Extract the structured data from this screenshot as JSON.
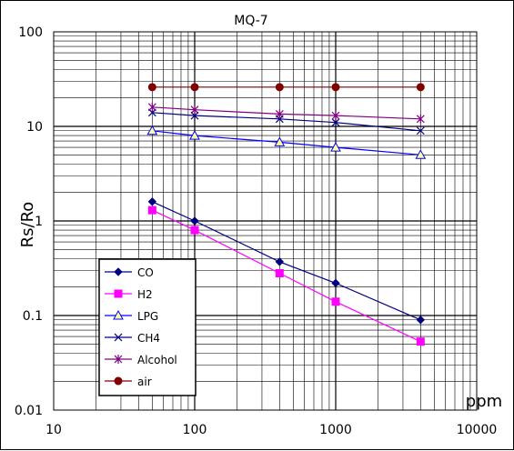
{
  "chart_data": {
    "type": "line",
    "title": "MQ-7",
    "xlabel": "ppm",
    "ylabel": "Rs/Ro",
    "x_scale": "log",
    "y_scale": "log",
    "xlim": [
      10,
      10000
    ],
    "ylim": [
      0.01,
      100
    ],
    "grid": true,
    "legend_position": "bottom-left",
    "x_ticks": [
      "10",
      "100",
      "1000",
      "10000"
    ],
    "y_ticks": [
      "100",
      "10",
      "1",
      "0.1",
      "0.01"
    ],
    "x": [
      50,
      100,
      400,
      1000,
      4000
    ],
    "series": [
      {
        "name": "CO",
        "color": "#000080",
        "marker": "diamond",
        "values": [
          1.6,
          1.0,
          0.37,
          0.22,
          0.09
        ]
      },
      {
        "name": "H2",
        "color": "#ff00ff",
        "marker": "square",
        "values": [
          1.3,
          0.8,
          0.28,
          0.14,
          0.053
        ]
      },
      {
        "name": "LPG",
        "color": "#0000ff",
        "marker": "triangle",
        "values": [
          9.0,
          8.0,
          6.8,
          6.0,
          5.0
        ]
      },
      {
        "name": "CH4",
        "color": "#000080",
        "marker": "x",
        "values": [
          14.0,
          13.0,
          12.0,
          11.0,
          9.0
        ]
      },
      {
        "name": "Alcohol",
        "color": "#800080",
        "marker": "star",
        "values": [
          16.0,
          15.0,
          13.5,
          13.0,
          12.0
        ]
      },
      {
        "name": "air",
        "color": "#800000",
        "marker": "circle",
        "values": [
          26,
          26,
          26,
          26,
          26
        ]
      }
    ]
  }
}
